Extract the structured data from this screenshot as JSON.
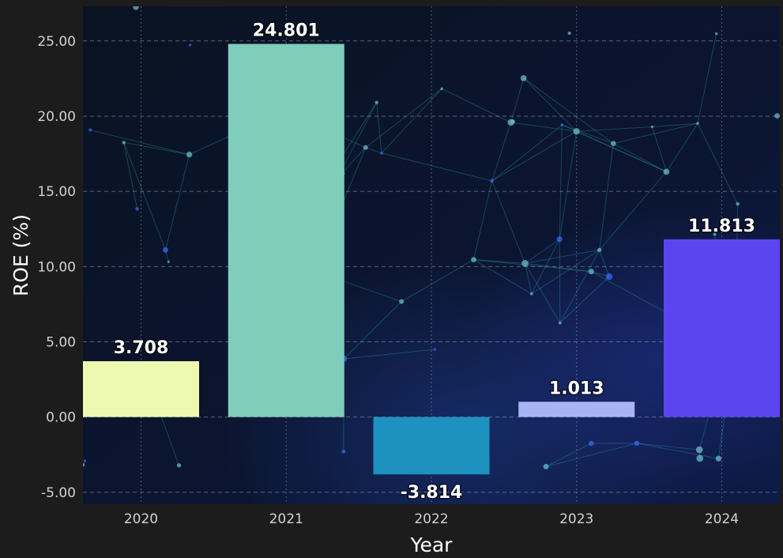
{
  "chart_data": {
    "type": "bar",
    "categories": [
      "2020",
      "2021",
      "2022",
      "2023",
      "2024"
    ],
    "values": [
      3.708,
      24.801,
      -3.814,
      1.013,
      11.813
    ],
    "value_labels": [
      "3.708",
      "24.801",
      "-3.814",
      "1.013",
      "11.813"
    ],
    "bar_colors": [
      "#edf8b1",
      "#7fcdbb",
      "#1d91c0",
      "#a9b4f5",
      "#5b45f0"
    ],
    "xlabel": "Year",
    "ylabel": "ROE (%)",
    "ylim": [
      -5.8,
      27.3
    ],
    "yticks": [
      -5,
      0,
      5,
      10,
      15,
      20,
      25
    ],
    "ytick_labels": [
      "-5.00",
      "0.00",
      "5.00",
      "10.00",
      "15.00",
      "20.00",
      "25.00"
    ],
    "grid": true,
    "background": "dark network image"
  }
}
